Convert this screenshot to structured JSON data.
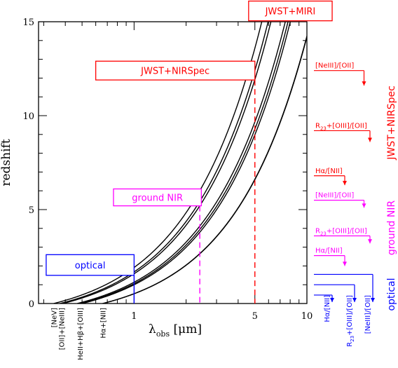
{
  "chart_data": {
    "type": "line",
    "xlabel": "λ_obs [μm]",
    "xlabel_main": "λ",
    "xlabel_sub": "obs",
    "xlabel_unit": "[μm]",
    "ylabel": "redshift",
    "x_scale": "log",
    "xlim": [
      0.28,
      10
    ],
    "ylim": [
      0,
      15
    ],
    "x_ticks": [
      {
        "value": 1,
        "label": "1"
      },
      {
        "value": 5,
        "label": "5"
      },
      {
        "value": 10,
        "label": "10"
      }
    ],
    "y_ticks": [
      {
        "value": 0,
        "label": "0"
      },
      {
        "value": 5,
        "label": "5"
      },
      {
        "value": 10,
        "label": "10"
      },
      {
        "value": 15,
        "label": "15"
      }
    ],
    "series": [
      {
        "rest_um": 0.3426
      },
      {
        "rest_um": 0.3727
      },
      {
        "rest_um": 0.3869
      },
      {
        "rest_um": 0.4686
      },
      {
        "rest_um": 0.4861
      },
      {
        "rest_um": 0.5007
      },
      {
        "rest_um": 0.6563
      },
      {
        "rest_um": 0.6584
      }
    ],
    "line_labels": [
      {
        "label": "[NeV]",
        "rest_um": 0.3426
      },
      {
        "label": "[OII]+[NeIII]",
        "rest_um": 0.38
      },
      {
        "label": "HeII+Hβ+[OIII]",
        "rest_um": 0.485
      },
      {
        "label": "Hα+[NII]",
        "rest_um": 0.657
      }
    ],
    "windows": [
      {
        "label": "optical",
        "color": "#0000ff",
        "x_max": 1.0,
        "box_x": [
          0.31,
          1.0
        ],
        "box_y": [
          1.5,
          2.6
        ]
      },
      {
        "label": "ground NIR",
        "color": "#ff00ff",
        "x_max": 2.4,
        "box_x": [
          0.76,
          2.45
        ],
        "box_y": [
          5.2,
          6.1
        ]
      },
      {
        "label": "JWST+NIRSpec",
        "color": "#ff0000",
        "x_max": 5.0,
        "box_x": [
          0.6,
          5.0
        ],
        "box_y": [
          11.9,
          12.9
        ]
      },
      {
        "label": "JWST+MIRI",
        "color": "#ff0000",
        "box_x": [
          4.6,
          14
        ],
        "box_y": [
          15.05,
          16.1
        ]
      }
    ],
    "indicators": [
      {
        "group": "JWST+NIRSpec",
        "color": "#ff0000",
        "items": [
          {
            "label": "[NeIII]/[OII]",
            "z_min": 11.6,
            "z_max": 12.4
          },
          {
            "label": "R23+[OIII]/[OII]",
            "z_min": 8.6,
            "z_max": 9.2
          },
          {
            "label": "Hα/[NII]",
            "z_min": 6.3,
            "z_max": 6.8
          }
        ]
      },
      {
        "group": "ground NIR",
        "color": "#ff00ff",
        "items": [
          {
            "label": "[NeIII]/[OII]",
            "z_min": 5.1,
            "z_max": 5.5
          },
          {
            "label": "R23+[OIII]/[OII]",
            "z_min": 3.2,
            "z_max": 3.6
          },
          {
            "label": "Hα/[NII]",
            "z_min": 2.0,
            "z_max": 2.55
          }
        ]
      },
      {
        "group": "optical",
        "color": "#0000ff",
        "items": [
          {
            "label": "Hα/[NII]",
            "z_min": 0.0,
            "z_max": 0.45
          },
          {
            "label": "R23+[OIII]/[OII]",
            "z_min": 0.0,
            "z_max": 1.0
          },
          {
            "label": "[NeIII]/[OII]",
            "z_min": 0.0,
            "z_max": 1.55
          }
        ]
      }
    ]
  }
}
